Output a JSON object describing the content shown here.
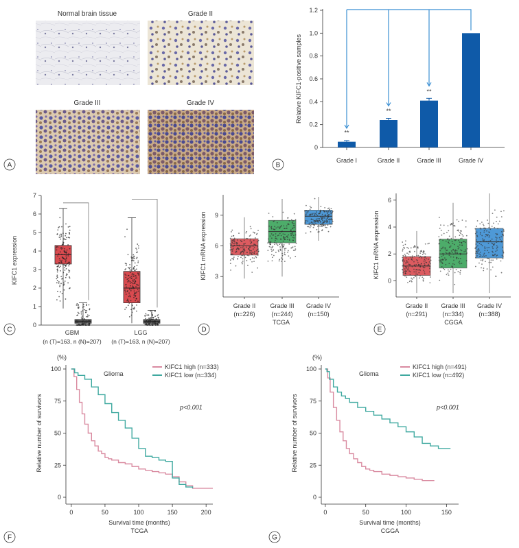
{
  "panel_labels": [
    "A",
    "B",
    "C",
    "D",
    "E",
    "F",
    "G"
  ],
  "colors": {
    "blue": "#0f5aa8",
    "red": "#d94a4f",
    "green": "#3aa45a",
    "sky": "#3b8fd3",
    "surv_high": "#d98aa0",
    "surv_low": "#3fa9a0"
  },
  "panel_a": {
    "titles": [
      "Normal brain tissue",
      "Grade II",
      "Grade III",
      "Grade IV"
    ]
  },
  "chart_data": [
    {
      "id": "B",
      "type": "bar",
      "categories": [
        "Grade I",
        "Grade II",
        "Grade III",
        "Grade IV"
      ],
      "values": [
        0.05,
        0.24,
        0.41,
        1.0
      ],
      "errors": [
        0.01,
        0.015,
        0.02,
        0
      ],
      "significance": [
        "**",
        "**",
        "**",
        ""
      ],
      "ylabel": "Relative KIFC1-positive samples",
      "ylim": [
        0,
        1.2
      ],
      "yticks": [
        "0",
        "0.2",
        "0.4",
        "0.6",
        "0.8",
        "1.0",
        "1.2"
      ]
    },
    {
      "id": "C",
      "type": "box",
      "ylabel": "KIFC1 expression",
      "ylim": [
        0,
        7
      ],
      "yticks": [
        "0",
        "1",
        "2",
        "3",
        "4",
        "5",
        "6",
        "7"
      ],
      "groups": [
        {
          "name": "GBM",
          "sub": "(n (T)=163, n (N)=207)",
          "tumor": {
            "q1": 3.3,
            "median": 3.8,
            "q3": 4.3,
            "min": 0.9,
            "max": 6.3
          },
          "normal": {
            "q1": 0.1,
            "median": 0.2,
            "q3": 0.3,
            "min": 0,
            "max": 1.2
          },
          "tumor_max_line": 6.6
        },
        {
          "name": "LGG",
          "sub": "(n (T)=163, n (N)=207)",
          "tumor": {
            "q1": 1.2,
            "median": 2.0,
            "q3": 2.9,
            "min": 0.1,
            "max": 5.8
          },
          "normal": {
            "q1": 0.1,
            "median": 0.2,
            "q3": 0.3,
            "min": 0,
            "max": 0.8
          },
          "tumor_max_line": 6.8
        }
      ]
    },
    {
      "id": "D",
      "type": "box",
      "ylabel": "KIFC1 mRNA expression",
      "ylim": [
        1,
        11
      ],
      "yticks": [
        "3",
        "6",
        "9"
      ],
      "title": "TCGA",
      "groups": [
        {
          "name": "Grade II",
          "sub": "(n=226)",
          "q1": 5.1,
          "median": 6.0,
          "q3": 6.7,
          "min": 2.8,
          "max": 8.8
        },
        {
          "name": "Grade III",
          "sub": "(n=244)",
          "q1": 6.3,
          "median": 7.4,
          "q3": 8.5,
          "min": 3.0,
          "max": 10.6
        },
        {
          "name": "Grade IV",
          "sub": "(n=150)",
          "q1": 8.1,
          "median": 8.9,
          "q3": 9.5,
          "min": 6.5,
          "max": 10.8
        }
      ]
    },
    {
      "id": "E",
      "type": "box",
      "ylabel": "KIFC1 mRNA expression",
      "ylim": [
        -1.2,
        6.5
      ],
      "yticks": [
        "0",
        "2",
        "4",
        "6"
      ],
      "title": "CGGA",
      "groups": [
        {
          "name": "Grade II",
          "sub": "(n=291)",
          "q1": 0.4,
          "median": 1.1,
          "q3": 1.8,
          "min": -0.9,
          "max": 3.7
        },
        {
          "name": "Grade III",
          "sub": "(n=334)",
          "q1": 0.95,
          "median": 2.0,
          "q3": 3.1,
          "min": -0.9,
          "max": 5.8
        },
        {
          "name": "Grade IV",
          "sub": "(n=388)",
          "q1": 1.7,
          "median": 2.9,
          "q3": 3.9,
          "min": -0.9,
          "max": 6.5
        }
      ]
    },
    {
      "id": "F",
      "type": "line",
      "title": "Glioma",
      "unit": "(%)",
      "pvalue": "p<0.001",
      "xlabel": "Survival time (months)",
      "subtitle": "TCGA",
      "ylabel": "Relative number of survivors",
      "xlim": [
        -8,
        210
      ],
      "ylim": [
        0,
        100
      ],
      "xticks": [
        "0",
        "50",
        "100",
        "150",
        "200"
      ],
      "yticks": [
        "0",
        "25",
        "50",
        "75",
        "100"
      ],
      "series": [
        {
          "name": "KIFC1 high (n=333)",
          "x": [
            0,
            4,
            8,
            12,
            16,
            20,
            25,
            30,
            35,
            40,
            45,
            50,
            55,
            60,
            70,
            80,
            90,
            100,
            110,
            120,
            130,
            140,
            150,
            160,
            170,
            180,
            190,
            200,
            210
          ],
          "y": [
            100,
            94,
            84,
            74,
            65,
            57,
            50,
            44,
            40,
            36,
            34,
            31,
            30,
            29,
            27,
            26,
            24,
            22,
            21,
            20,
            19,
            18,
            16,
            12,
            9,
            7,
            7,
            7,
            7
          ]
        },
        {
          "name": "KIFC1 low (n=334)",
          "x": [
            0,
            5,
            10,
            20,
            30,
            40,
            50,
            60,
            70,
            80,
            90,
            100,
            110,
            120,
            130,
            140,
            150,
            160,
            170,
            180
          ],
          "y": [
            100,
            97,
            95,
            92,
            86,
            80,
            73,
            66,
            60,
            54,
            46,
            38,
            32,
            31,
            29,
            28,
            15,
            10,
            8,
            7
          ]
        }
      ]
    },
    {
      "id": "G",
      "type": "line",
      "title": "Glioma",
      "unit": "(%)",
      "pvalue": "p<0.001",
      "xlabel": "Survival time (months)",
      "subtitle": "CGGA",
      "ylabel": "Relative number of survivors",
      "xlim": [
        -5,
        165
      ],
      "ylim": [
        0,
        100
      ],
      "xticks": [
        "0",
        "50",
        "100",
        "150"
      ],
      "yticks": [
        "0",
        "25",
        "50",
        "75",
        "100"
      ],
      "series": [
        {
          "name": "KIFC1 high (n=491)",
          "x": [
            0,
            3,
            6,
            10,
            14,
            18,
            22,
            26,
            30,
            35,
            40,
            45,
            50,
            55,
            60,
            70,
            80,
            90,
            100,
            110,
            120,
            130,
            135
          ],
          "y": [
            100,
            93,
            82,
            70,
            60,
            51,
            44,
            38,
            34,
            30,
            27,
            24,
            22,
            21,
            20,
            18,
            17,
            16,
            15,
            14,
            13,
            13,
            13
          ]
        },
        {
          "name": "KIFC1 low (n=492)",
          "x": [
            0,
            2,
            5,
            10,
            15,
            20,
            25,
            30,
            40,
            50,
            60,
            70,
            80,
            90,
            100,
            110,
            120,
            130,
            140,
            150,
            155
          ],
          "y": [
            100,
            98,
            92,
            86,
            82,
            79,
            77,
            74,
            70,
            67,
            64,
            61,
            58,
            55,
            51,
            47,
            42,
            40,
            38,
            38,
            38
          ]
        }
      ]
    }
  ]
}
